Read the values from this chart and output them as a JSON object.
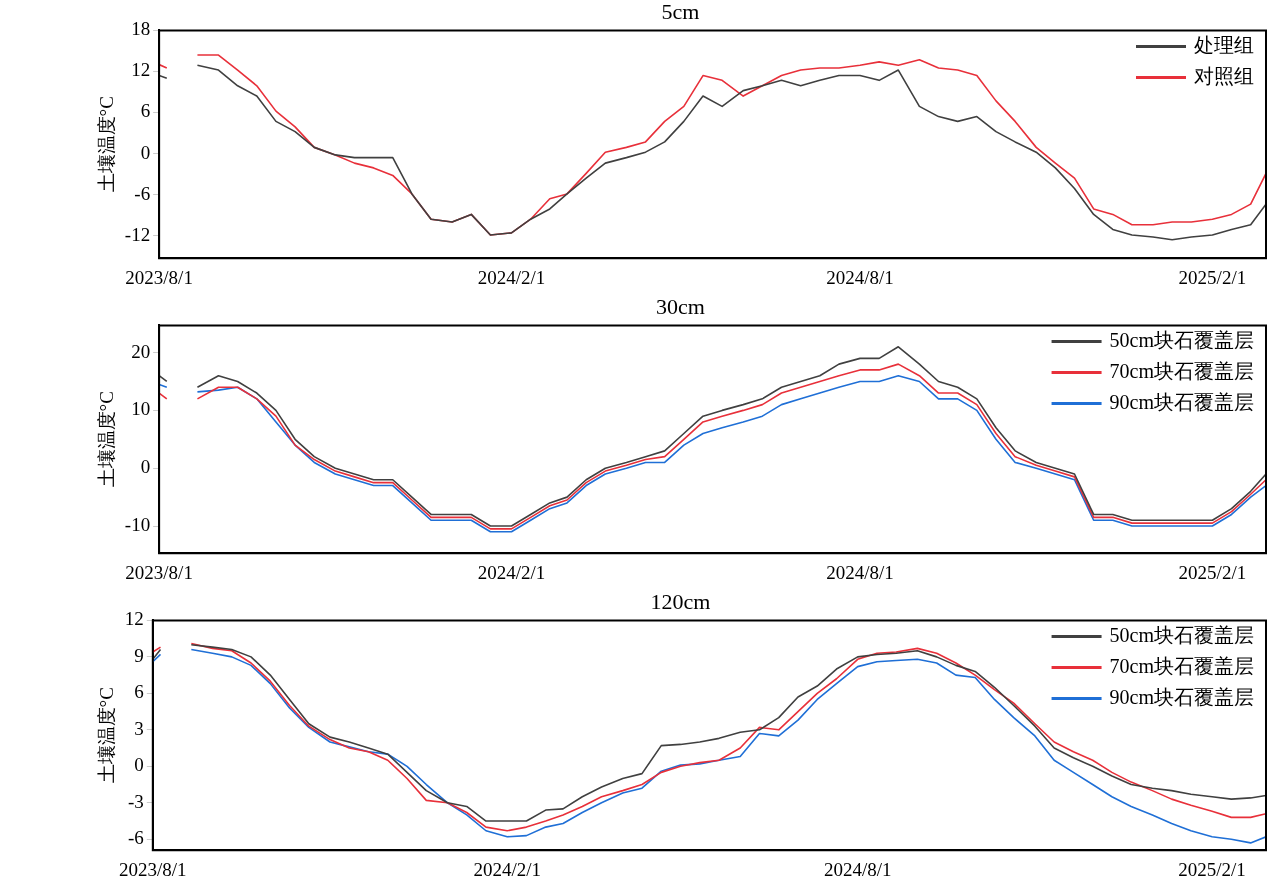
{
  "chart_data": [
    {
      "type": "line",
      "title": "5cm",
      "ylabel": "土壤温度°C",
      "grid": false,
      "legend": "top right",
      "marker": "none",
      "line_style": "solid",
      "x": [
        "2023-08-01",
        "2023-08-05",
        "2023-08-11",
        "2023-08-21",
        "2023-09-01",
        "2023-09-11",
        "2023-09-21",
        "2023-10-01",
        "2023-10-11",
        "2023-10-21",
        "2023-11-01",
        "2023-11-11",
        "2023-11-21",
        "2023-12-01",
        "2023-12-11",
        "2023-12-21",
        "2024-01-01",
        "2024-01-11",
        "2024-01-21",
        "2024-02-01",
        "2024-02-11",
        "2024-02-21",
        "2024-03-01",
        "2024-03-11",
        "2024-03-21",
        "2024-04-01",
        "2024-04-11",
        "2024-04-21",
        "2024-05-01",
        "2024-05-11",
        "2024-05-21",
        "2024-06-01",
        "2024-06-11",
        "2024-06-21",
        "2024-07-01",
        "2024-07-11",
        "2024-07-21",
        "2024-08-01",
        "2024-08-11",
        "2024-08-21",
        "2024-09-01",
        "2024-09-11",
        "2024-09-21",
        "2024-10-01",
        "2024-10-11",
        "2024-10-21",
        "2024-11-01",
        "2024-11-11",
        "2024-11-21",
        "2024-12-01",
        "2024-12-11",
        "2024-12-21",
        "2025-01-01",
        "2025-01-11",
        "2025-01-21",
        "2025-02-01",
        "2025-02-11",
        "2025-02-21",
        "2025-03-01"
      ],
      "xlim": [
        "2023-08-01",
        "2025-03-01"
      ],
      "xticks": [
        {
          "value": "2023-08-01",
          "label": "2023/8/1"
        },
        {
          "value": "2024-02-01",
          "label": "2024/2/1"
        },
        {
          "value": "2024-08-01",
          "label": "2024/8/1"
        },
        {
          "value": "2025-02-01",
          "label": "2025/2/1"
        }
      ],
      "ylim": [
        -15.3,
        18
      ],
      "yticks": [
        -12,
        -6,
        0,
        6,
        12,
        18
      ],
      "series": [
        {
          "name": "处理组",
          "color": "#404040",
          "values": [
            11.4,
            11,
            null,
            12.9,
            12.2,
            9.9,
            8.4,
            4.7,
            3.2,
            0.9,
            -0.2,
            -0.6,
            -0.6,
            -0.6,
            -5.9,
            -9.6,
            -10,
            -8.9,
            -11.9,
            -11.6,
            -9.6,
            -8.1,
            -5.9,
            -3.6,
            -1.4,
            -0.6,
            0.2,
            1.7,
            4.7,
            8.4,
            6.9,
            9.2,
            9.9,
            10.7,
            9.9,
            10.7,
            11.4,
            11.4,
            10.7,
            12.2,
            6.9,
            5.4,
            4.7,
            5.4,
            3.2,
            1.7,
            0.2,
            -2.1,
            -5.1,
            -8.9,
            -11.1,
            -11.9,
            -12.2,
            -12.6,
            -12.2,
            -11.9,
            -11.1,
            -10.4,
            -7.4
          ]
        },
        {
          "name": "对照组",
          "color": "#e8303a",
          "values": [
            13,
            12.5,
            null,
            14.4,
            14.4,
            12.2,
            9.9,
            6.2,
            3.9,
            0.9,
            -0.2,
            -1.4,
            -2.1,
            -3.2,
            -5.9,
            -9.6,
            -10,
            -8.9,
            -11.9,
            -11.6,
            -9.6,
            -6.6,
            -5.9,
            -2.9,
            0.2,
            0.9,
            1.7,
            4.7,
            6.9,
            11.4,
            10.7,
            8.4,
            9.9,
            11.4,
            12.2,
            12.5,
            12.5,
            12.9,
            13.4,
            12.9,
            13.7,
            12.5,
            12.2,
            11.4,
            7.7,
            4.7,
            0.9,
            -1.4,
            -3.6,
            -8.1,
            -8.9,
            -10.4,
            -10.4,
            -10,
            -10,
            -9.6,
            -8.9,
            -7.4,
            -2.9
          ]
        }
      ]
    },
    {
      "type": "line",
      "title": "30cm",
      "ylabel": "土壤温度°C",
      "grid": false,
      "legend": "top right",
      "marker": "none",
      "line_style": "solid",
      "x": [
        "2023-08-01",
        "2023-08-05",
        "2023-08-11",
        "2023-08-21",
        "2023-09-01",
        "2023-09-11",
        "2023-09-21",
        "2023-10-01",
        "2023-10-11",
        "2023-10-21",
        "2023-11-01",
        "2023-11-11",
        "2023-11-21",
        "2023-12-01",
        "2023-12-11",
        "2023-12-21",
        "2024-01-01",
        "2024-01-11",
        "2024-01-21",
        "2024-02-01",
        "2024-02-11",
        "2024-02-21",
        "2024-03-01",
        "2024-03-11",
        "2024-03-21",
        "2024-04-01",
        "2024-04-11",
        "2024-04-21",
        "2024-05-01",
        "2024-05-11",
        "2024-05-21",
        "2024-06-01",
        "2024-06-11",
        "2024-06-21",
        "2024-07-01",
        "2024-07-11",
        "2024-07-21",
        "2024-08-01",
        "2024-08-11",
        "2024-08-21",
        "2024-09-01",
        "2024-09-11",
        "2024-09-21",
        "2024-10-01",
        "2024-10-11",
        "2024-10-21",
        "2024-11-01",
        "2024-11-11",
        "2024-11-21",
        "2024-12-01",
        "2024-12-11",
        "2024-12-21",
        "2025-01-01",
        "2025-01-11",
        "2025-01-21",
        "2025-02-01",
        "2025-02-11",
        "2025-02-21",
        "2025-03-01"
      ],
      "xlim": [
        "2023-08-01",
        "2025-03-01"
      ],
      "xticks": [
        {
          "value": "2023-08-01",
          "label": "2023/8/1"
        },
        {
          "value": "2024-02-01",
          "label": "2024/2/1"
        },
        {
          "value": "2024-08-01",
          "label": "2024/8/1"
        },
        {
          "value": "2025-02-01",
          "label": "2025/2/1"
        }
      ],
      "ylim": [
        -14.7,
        24.7
      ],
      "yticks": [
        -10,
        0,
        10,
        20
      ],
      "series": [
        {
          "name": "50cm块石覆盖层",
          "color": "#404040",
          "values": [
            16,
            15,
            null,
            14,
            16,
            15,
            13,
            10,
            5,
            2,
            0,
            -1,
            -2,
            -2,
            -5,
            -8,
            -8,
            -8,
            -10,
            -10,
            -8,
            -6,
            -5,
            -2,
            0,
            1,
            2,
            3,
            6,
            9,
            10,
            11,
            12,
            14,
            15,
            16,
            18,
            19,
            19,
            21,
            18,
            15,
            14,
            12,
            7,
            3,
            1,
            0,
            -1,
            -8,
            -8,
            -9,
            -9,
            -9,
            -9,
            -9,
            -7,
            -4,
            -1
          ]
        },
        {
          "name": "70cm块石覆盖层",
          "color": "#e8303a",
          "values": [
            13,
            12,
            null,
            12,
            14,
            14,
            12,
            9,
            4,
            1.5,
            -0.5,
            -1.5,
            -2.5,
            -2.5,
            -5.5,
            -8.5,
            -8.5,
            -8.5,
            -10.5,
            -10.5,
            -8.5,
            -6.5,
            -5.5,
            -2.5,
            -0.5,
            0.5,
            1.5,
            2,
            5,
            8,
            9,
            10,
            11,
            13,
            14,
            15,
            16,
            17,
            17,
            18,
            16,
            13,
            13,
            11,
            6,
            2,
            0.5,
            -0.5,
            -1.5,
            -8.5,
            -8.5,
            -9.5,
            -9.5,
            -9.5,
            -9.5,
            -9.5,
            -7.5,
            -4.5,
            -2
          ]
        },
        {
          "name": "90cm块石覆盖层",
          "color": "#1f6fd6",
          "values": [
            14.5,
            14,
            null,
            13.2,
            13.5,
            14,
            12,
            8,
            4,
            1,
            -1,
            -2,
            -3,
            -3,
            -6,
            -9,
            -9,
            -9,
            -11,
            -11,
            -9,
            -7,
            -6,
            -3,
            -1,
            0,
            1,
            1,
            4,
            6,
            7,
            8,
            9,
            11,
            12,
            13,
            14,
            15,
            15,
            16,
            15,
            12,
            12,
            10,
            5,
            1,
            0,
            -1,
            -2,
            -9,
            -9,
            -10,
            -10,
            -10,
            -10,
            -10,
            -8,
            -5,
            -3
          ]
        }
      ]
    },
    {
      "type": "line",
      "title": "120cm",
      "ylabel": "土壤温度°C",
      "grid": false,
      "legend": "top right",
      "marker": "none",
      "line_style": "solid",
      "x": [
        "2023-08-01",
        "2023-08-05",
        "2023-08-11",
        "2023-08-21",
        "2023-09-01",
        "2023-09-11",
        "2023-09-21",
        "2023-10-01",
        "2023-10-11",
        "2023-10-21",
        "2023-11-01",
        "2023-11-11",
        "2023-11-21",
        "2023-12-01",
        "2023-12-11",
        "2023-12-21",
        "2024-01-01",
        "2024-01-11",
        "2024-01-21",
        "2024-02-01",
        "2024-02-11",
        "2024-02-21",
        "2024-03-01",
        "2024-03-11",
        "2024-03-21",
        "2024-04-01",
        "2024-04-11",
        "2024-04-21",
        "2024-05-01",
        "2024-05-11",
        "2024-05-21",
        "2024-06-01",
        "2024-06-11",
        "2024-06-21",
        "2024-07-01",
        "2024-07-11",
        "2024-07-21",
        "2024-08-01",
        "2024-08-11",
        "2024-08-21",
        "2024-09-01",
        "2024-09-11",
        "2024-09-21",
        "2024-10-01",
        "2024-10-11",
        "2024-10-21",
        "2024-11-01",
        "2024-11-11",
        "2024-11-21",
        "2024-12-01",
        "2024-12-11",
        "2024-12-21",
        "2025-01-01",
        "2025-01-11",
        "2025-01-21",
        "2025-02-01",
        "2025-02-11",
        "2025-02-21",
        "2025-03-01"
      ],
      "xlim": [
        "2023-08-01",
        "2025-03-01"
      ],
      "xticks": [
        {
          "value": "2023-08-01",
          "label": "2023/8/1"
        },
        {
          "value": "2024-02-01",
          "label": "2024/2/1"
        },
        {
          "value": "2024-08-01",
          "label": "2024/8/1"
        },
        {
          "value": "2025-02-01",
          "label": "2025/2/1"
        }
      ],
      "ylim": [
        -6.9,
        12
      ],
      "yticks": [
        -6,
        -3,
        0,
        3,
        6,
        9,
        12
      ],
      "series": [
        {
          "name": "50cm块石覆盖层",
          "color": "#404040",
          "values": [
            8.8,
            9.6,
            null,
            10,
            9.8,
            9.6,
            9,
            7.5,
            5.5,
            3.5,
            2.4,
            2,
            1.5,
            1,
            -0.5,
            -2,
            -3,
            -3.3,
            -4.5,
            -4.5,
            -4.5,
            -3.6,
            -3.5,
            -2.5,
            -1.7,
            -1,
            -0.6,
            1.7,
            1.8,
            2,
            2.3,
            2.8,
            3,
            4,
            5.7,
            6.6,
            8,
            9,
            9.2,
            9.3,
            9.5,
            9,
            8.3,
            7.8,
            6.5,
            5,
            3.3,
            1.5,
            0.7,
            0,
            -0.8,
            -1.5,
            -1.8,
            -2,
            -2.3,
            -2.5,
            -2.7,
            -2.6,
            -2.4
          ]
        },
        {
          "name": "70cm块石覆盖层",
          "color": "#e8303a",
          "values": [
            9.4,
            9.8,
            null,
            10.1,
            9.7,
            9.5,
            8.5,
            7,
            5,
            3.3,
            2.2,
            1.5,
            1.2,
            0.5,
            -1,
            -2.8,
            -3,
            -3.8,
            -5,
            -5.3,
            -5,
            -4.5,
            -4,
            -3.3,
            -2.5,
            -2,
            -1.5,
            -0.5,
            0,
            0.3,
            0.5,
            1.5,
            3.2,
            3,
            4.5,
            6,
            7.2,
            8.8,
            9.3,
            9.4,
            9.7,
            9.3,
            8.5,
            7.5,
            6.3,
            5.2,
            3.5,
            2,
            1.2,
            0.5,
            -0.5,
            -1.3,
            -2,
            -2.7,
            -3.2,
            -3.7,
            -4.2,
            -4.2,
            -3.9
          ]
        },
        {
          "name": "90cm块石覆盖层",
          "color": "#1f6fd6",
          "values": [
            8.6,
            9.2,
            null,
            9.6,
            9.3,
            9,
            8.3,
            6.8,
            4.8,
            3.2,
            2,
            1.6,
            1.2,
            1,
            0,
            -1.5,
            -3,
            -4,
            -5.3,
            -5.8,
            -5.7,
            -5,
            -4.7,
            -3.8,
            -3,
            -2.2,
            -1.8,
            -0.4,
            0.1,
            0.2,
            0.5,
            0.8,
            2.7,
            2.5,
            3.8,
            5.5,
            6.8,
            8.2,
            8.6,
            8.7,
            8.8,
            8.5,
            7.5,
            7.3,
            5.5,
            4,
            2.5,
            0.5,
            -0.5,
            -1.5,
            -2.5,
            -3.3,
            -4,
            -4.7,
            -5.3,
            -5.8,
            -6,
            -6.3,
            -5.8
          ]
        }
      ]
    }
  ]
}
